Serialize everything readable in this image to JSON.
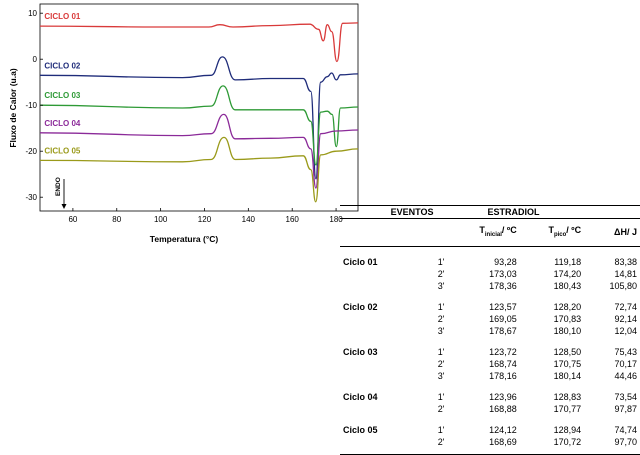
{
  "chart_data": {
    "type": "line",
    "ylabel": "Fluxo de Calor (u.a)",
    "xlabel": "Temperatura (°C)",
    "xlim": [
      45,
      190
    ],
    "ylim": [
      -33,
      12
    ],
    "x_ticks": [
      60,
      80,
      100,
      120,
      140,
      160,
      180
    ],
    "y_ticks": [
      10,
      0,
      -10,
      -20,
      -30
    ],
    "annotation": "ENDO",
    "series": [
      {
        "name": "CICLO 01",
        "color": "#d93a3a",
        "x": [
          45,
          100,
          122,
          127,
          133,
          150,
          168,
          172,
          174.2,
          176,
          178,
          180.4,
          183,
          190
        ],
        "y": [
          7.2,
          7.0,
          7.0,
          7.5,
          7.0,
          7.3,
          7.6,
          6.5,
          4.0,
          7.5,
          6.0,
          -0.5,
          7.8,
          7.9
        ]
      },
      {
        "name": "CICLO 02",
        "color": "#1f2c7a",
        "x": [
          45,
          110,
          123,
          128.2,
          134,
          150,
          165,
          168.5,
          170.8,
          173,
          176,
          178,
          180.1,
          182,
          190
        ],
        "y": [
          -3.5,
          -4.0,
          -3.5,
          0.5,
          -4.5,
          -4.2,
          -4.2,
          -7.0,
          -26.0,
          -5.0,
          -3.8,
          -3.0,
          -4.5,
          -3.4,
          -3.2
        ]
      },
      {
        "name": "CICLO 03",
        "color": "#2e9a36",
        "x": [
          45,
          110,
          123,
          128.5,
          134,
          150,
          165,
          168.5,
          170.8,
          173,
          176,
          178.2,
          180.1,
          182,
          190
        ],
        "y": [
          -10.0,
          -10.6,
          -10.2,
          -5.8,
          -11.0,
          -11.0,
          -11.0,
          -13.5,
          -23.0,
          -11.5,
          -11.3,
          -12.0,
          -19.0,
          -10.6,
          -10.4
        ]
      },
      {
        "name": "CICLO 04",
        "color": "#8b2a99",
        "x": [
          45,
          110,
          123,
          128.8,
          134,
          150,
          165,
          168.5,
          170.8,
          173,
          180,
          190
        ],
        "y": [
          -16.0,
          -16.6,
          -16.2,
          -12.0,
          -17.3,
          -17.2,
          -17.0,
          -19.5,
          -28.0,
          -16.2,
          -15.6,
          -15.4
        ]
      },
      {
        "name": "CICLO 05",
        "color": "#9a9a1a",
        "x": [
          45,
          110,
          123,
          128.9,
          134,
          150,
          165,
          168.5,
          170.7,
          173,
          180,
          190
        ],
        "y": [
          -22.0,
          -22.3,
          -21.8,
          -17.0,
          -21.8,
          -21.5,
          -21.0,
          -24.0,
          -31.0,
          -20.8,
          -20.0,
          -19.5
        ]
      }
    ]
  },
  "table": {
    "header_events": "EVENTOS",
    "header_estradiol": "ESTRADIOL",
    "col_tinicial": "T",
    "col_tinicial_sub": "inicial",
    "col_tinicial_unit": "/ ºC",
    "col_tpico": "T",
    "col_tpico_sub": "pico",
    "col_tpico_unit": "/ ºC",
    "col_dh": "ΔH/ J",
    "cycles": [
      {
        "label": "Ciclo 01",
        "rows": [
          {
            "ev": "1'",
            "ti": "93,28",
            "tp": "119,18",
            "dh": "83,38"
          },
          {
            "ev": "2'",
            "ti": "173,03",
            "tp": "174,20",
            "dh": "14,81"
          },
          {
            "ev": "3'",
            "ti": "178,36",
            "tp": "180,43",
            "dh": "105,80"
          }
        ]
      },
      {
        "label": "Ciclo 02",
        "rows": [
          {
            "ev": "1'",
            "ti": "123,57",
            "tp": "128,20",
            "dh": "72,74"
          },
          {
            "ev": "2'",
            "ti": "169,05",
            "tp": "170,83",
            "dh": "92,14"
          },
          {
            "ev": "3'",
            "ti": "178,67",
            "tp": "180,10",
            "dh": "12,04"
          }
        ]
      },
      {
        "label": "Ciclo 03",
        "rows": [
          {
            "ev": "1'",
            "ti": "123,72",
            "tp": "128,50",
            "dh": "75,43"
          },
          {
            "ev": "2'",
            "ti": "168,74",
            "tp": "170,75",
            "dh": "70,17"
          },
          {
            "ev": "3'",
            "ti": "178,16",
            "tp": "180,14",
            "dh": "44,46"
          }
        ]
      },
      {
        "label": "Ciclo 04",
        "rows": [
          {
            "ev": "1'",
            "ti": "123,96",
            "tp": "128,83",
            "dh": "73,54"
          },
          {
            "ev": "2'",
            "ti": "168,88",
            "tp": "170,77",
            "dh": "97,87"
          }
        ]
      },
      {
        "label": "Ciclo 05",
        "rows": [
          {
            "ev": "1'",
            "ti": "124,12",
            "tp": "128,94",
            "dh": "74,74"
          },
          {
            "ev": "2'",
            "ti": "168,69",
            "tp": "170,72",
            "dh": "97,70"
          }
        ]
      }
    ]
  }
}
